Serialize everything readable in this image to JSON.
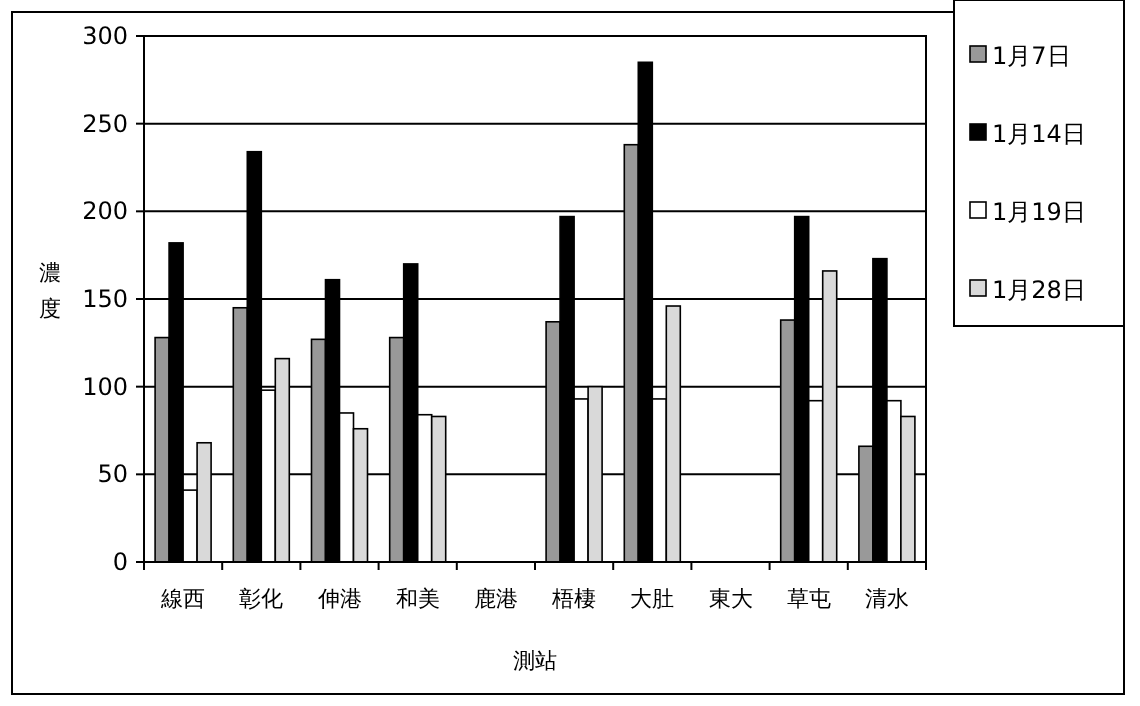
{
  "chart_data": {
    "type": "bar",
    "categories": [
      "線西",
      "彰化",
      "伸港",
      "和美",
      "鹿港",
      "梧棲",
      "大肚",
      "東大",
      "草屯",
      "清水"
    ],
    "series": [
      {
        "name": "1月7日",
        "color": "#999999",
        "values": [
          128,
          145,
          127,
          128,
          null,
          137,
          238,
          null,
          138,
          66
        ]
      },
      {
        "name": "1月14日",
        "color": "#000000",
        "values": [
          182,
          234,
          161,
          170,
          null,
          197,
          285,
          null,
          197,
          173
        ]
      },
      {
        "name": "1月19日",
        "color": "#ffffff",
        "values": [
          41,
          98,
          85,
          84,
          null,
          93,
          93,
          null,
          92,
          92
        ]
      },
      {
        "name": "1月28日",
        "color": "#d9d9d9",
        "values": [
          68,
          116,
          76,
          83,
          null,
          100,
          146,
          null,
          166,
          83
        ]
      }
    ],
    "xlabel": "測站",
    "ylabel": "濃度",
    "ylim": [
      0,
      300
    ],
    "yticks": [
      0,
      50,
      100,
      150,
      200,
      250,
      300
    ],
    "grid": "y",
    "legend": "right"
  }
}
